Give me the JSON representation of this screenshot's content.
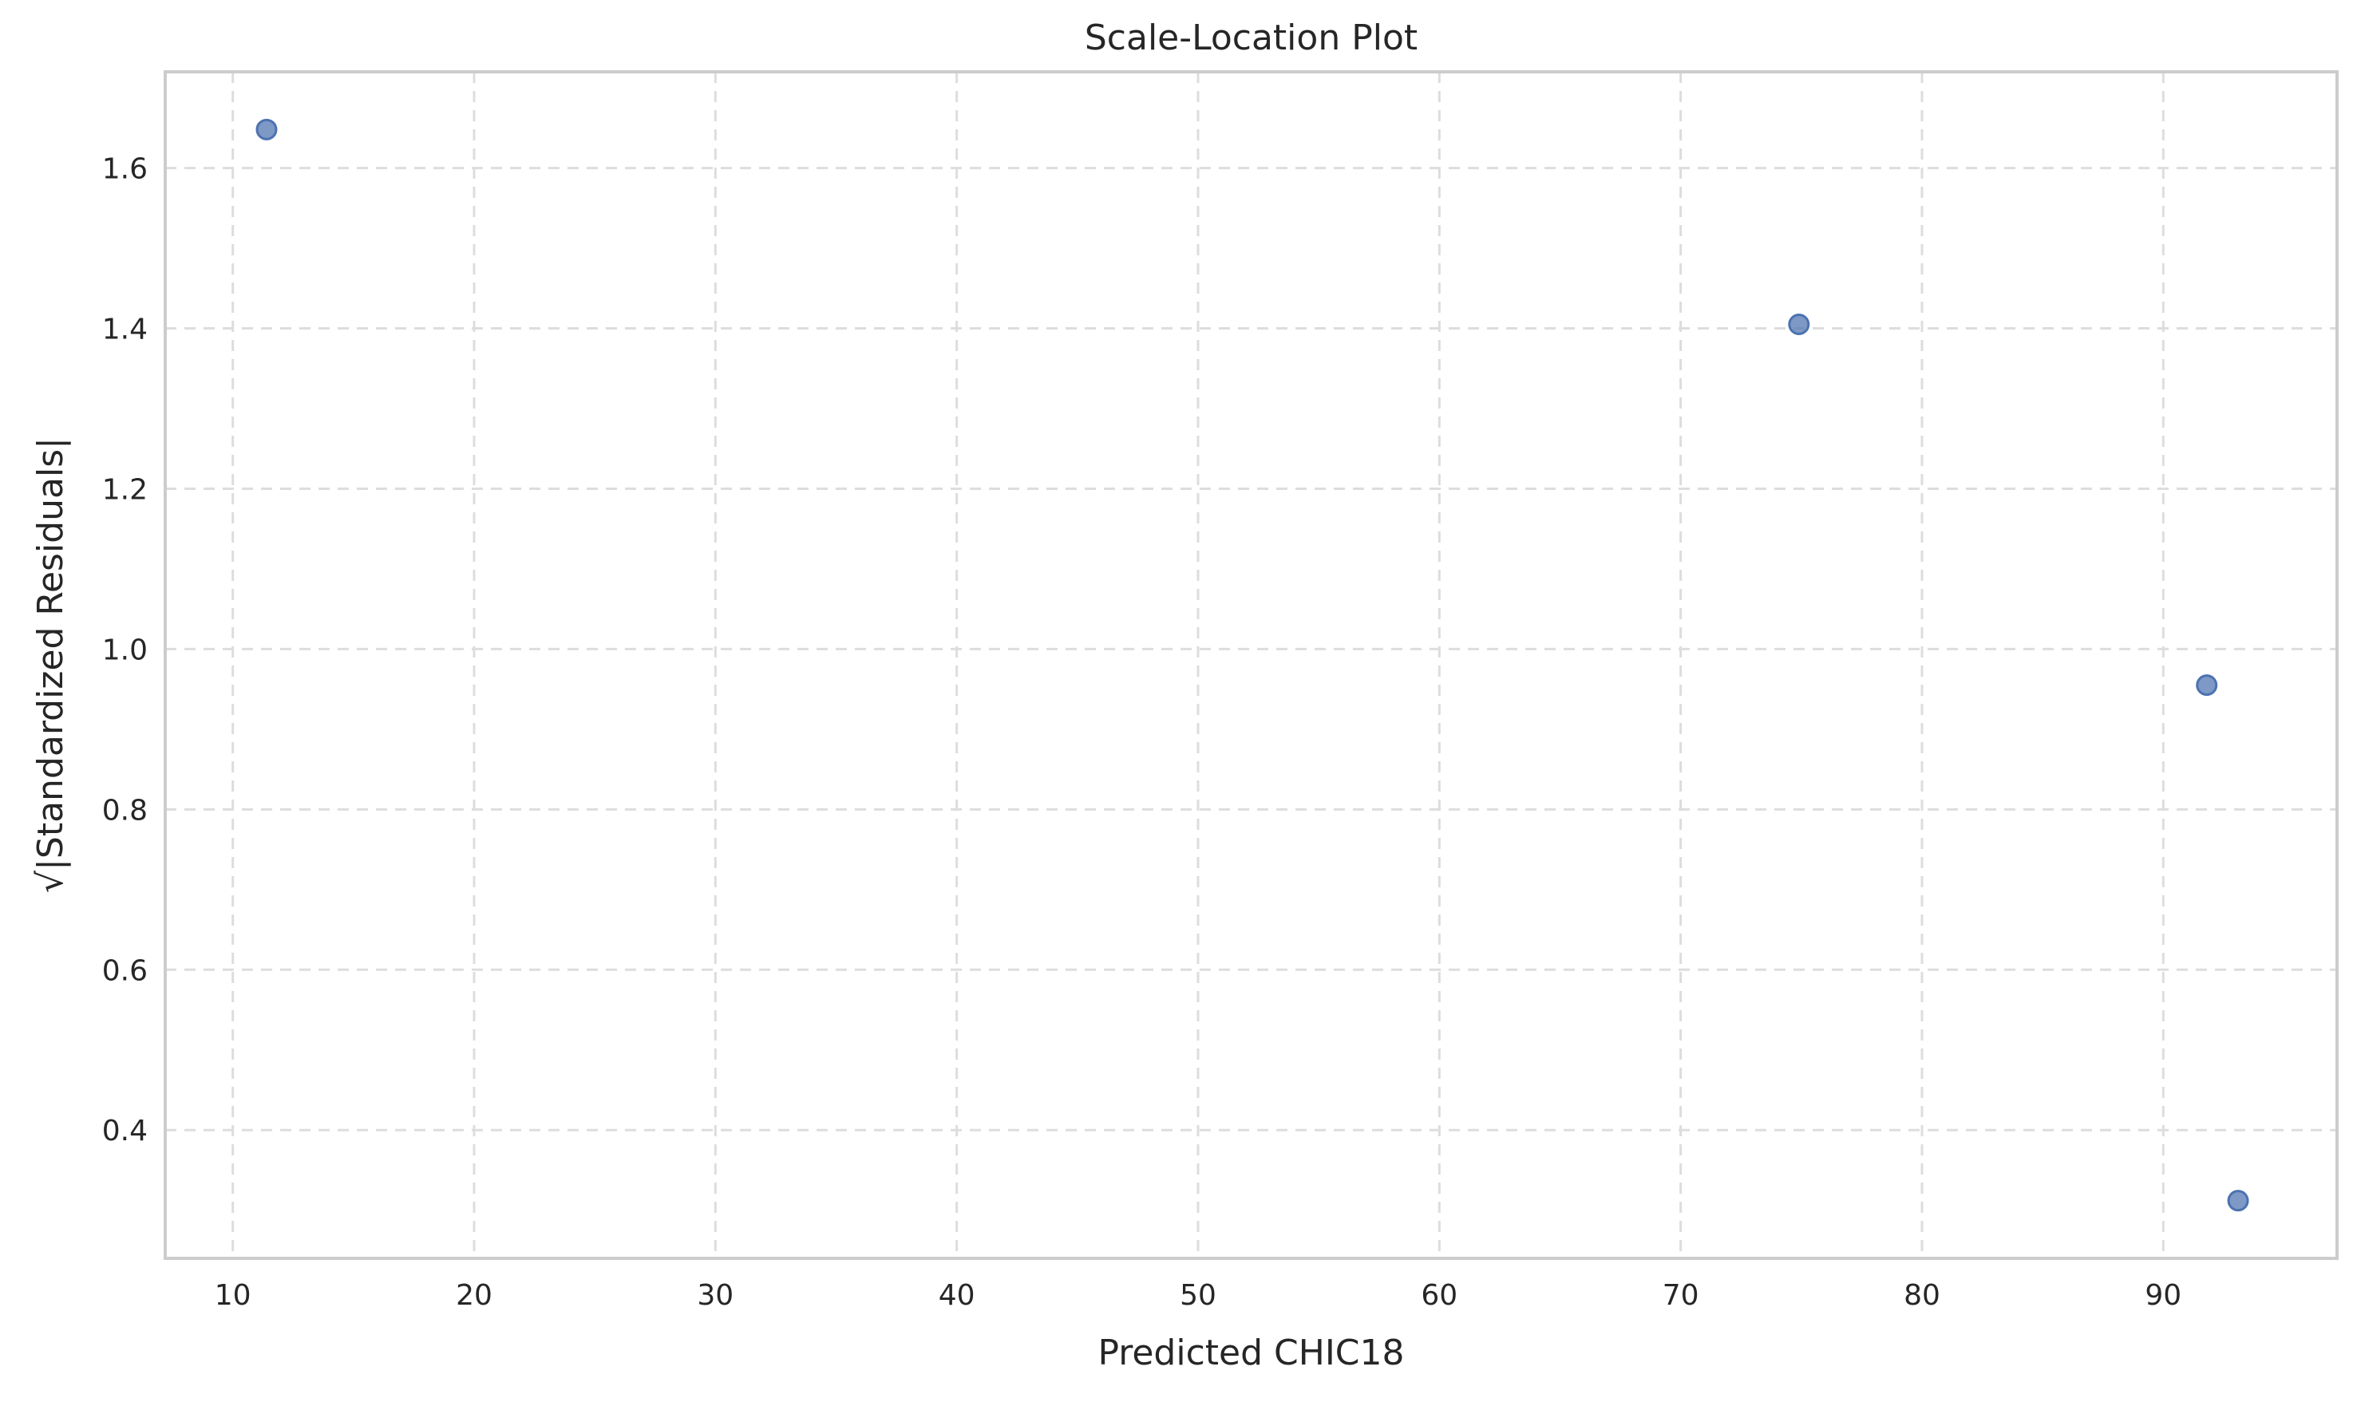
{
  "chart_data": {
    "type": "scatter",
    "title": "Scale-Location Plot",
    "xlabel": "Predicted CHIC18",
    "ylabel": "√|Standardized Residuals|",
    "xlim": [
      7.2,
      97.2
    ],
    "ylim": [
      0.24,
      1.72
    ],
    "x_ticks": [
      10,
      20,
      30,
      40,
      50,
      60,
      70,
      80,
      90
    ],
    "x_tick_labels": [
      "10",
      "20",
      "30",
      "40",
      "50",
      "60",
      "70",
      "80",
      "90"
    ],
    "y_ticks": [
      0.4,
      0.6,
      0.8,
      1.0,
      1.2,
      1.4,
      1.6
    ],
    "y_tick_labels": [
      "0.4",
      "0.6",
      "0.8",
      "1.0",
      "1.2",
      "1.4",
      "1.6"
    ],
    "grid": true,
    "points": [
      {
        "x": 11.4,
        "y": 1.648
      },
      {
        "x": 74.9,
        "y": 1.405
      },
      {
        "x": 91.8,
        "y": 0.955
      },
      {
        "x": 93.1,
        "y": 0.312
      }
    ],
    "colors": {
      "marker": "#4c72b0",
      "grid": "#dddddd",
      "axes": "#cccccc"
    }
  }
}
